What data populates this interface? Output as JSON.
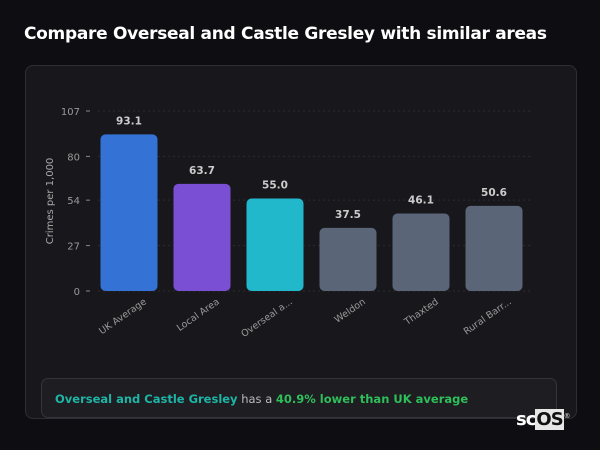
{
  "title": "Compare Overseal and Castle Gresley with similar areas",
  "chart_data": {
    "type": "bar",
    "categories": [
      "UK Average",
      "Local Area",
      "Overseal a...",
      "Weldon",
      "Thaxted",
      "Rural Barr..."
    ],
    "values": [
      93.1,
      63.7,
      55.0,
      37.5,
      46.1,
      50.6
    ],
    "data_labels": [
      "93.1",
      "63.7",
      "55.0",
      "37.5",
      "46.1",
      "50.6"
    ],
    "colors": [
      "#3572d6",
      "#7b4fd4",
      "#22b8cc",
      "#5a6678",
      "#5a6678",
      "#5a6678"
    ],
    "ylabel": "Crimes per 1,000",
    "xlabel": "",
    "ylim": [
      0,
      107
    ],
    "yticks": [
      0,
      27,
      54,
      80,
      107
    ],
    "grid": true
  },
  "footer": {
    "place": "Overseal and Castle Gresley",
    "middle": "has a",
    "comparison": "40.9% lower than UK average"
  },
  "logo": {
    "text_a": "sc",
    "text_b": "OS",
    "mark": "®"
  }
}
